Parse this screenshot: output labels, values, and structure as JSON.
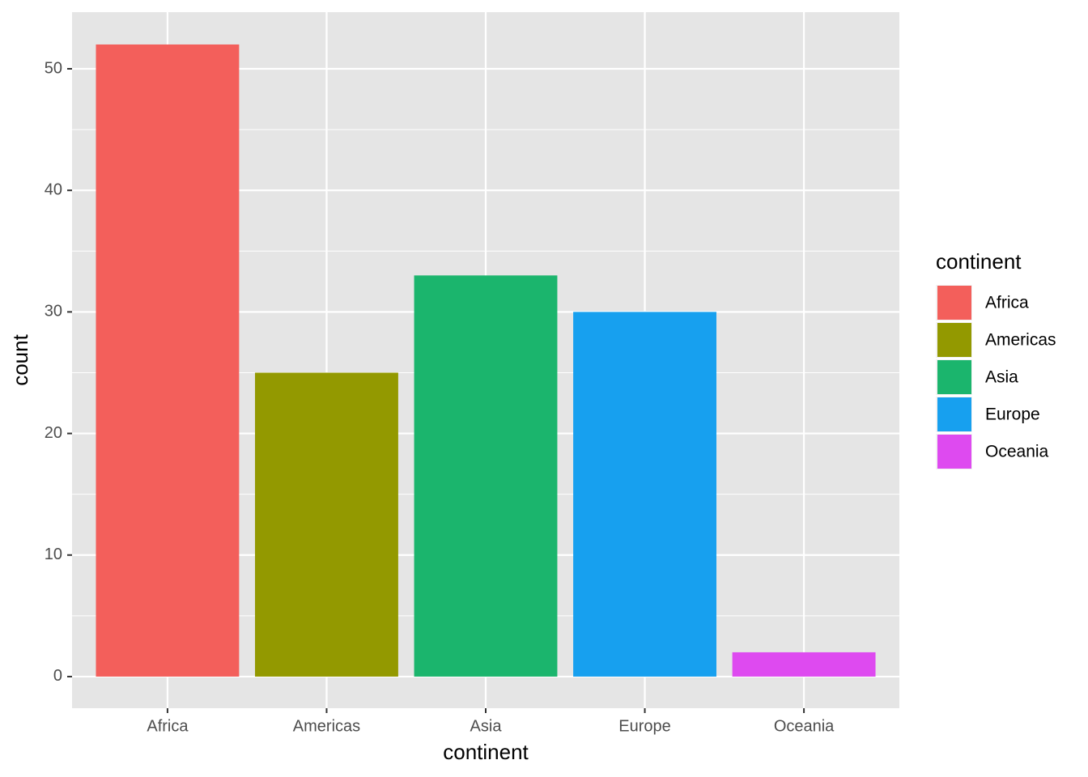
{
  "chart_data": {
    "type": "bar",
    "categories": [
      "Africa",
      "Americas",
      "Asia",
      "Europe",
      "Oceania"
    ],
    "values": [
      52,
      25,
      33,
      30,
      2
    ],
    "colors": [
      "#f35f5b",
      "#939900",
      "#1bb56d",
      "#17a0ef",
      "#de4af0"
    ],
    "x_label": "continent",
    "y_label": "count",
    "ylim": [
      -2.6,
      54.66
    ],
    "yticks": [
      0,
      10,
      20,
      30,
      40,
      50
    ],
    "grid": true,
    "legend": {
      "title": "continent",
      "position": "right"
    }
  }
}
